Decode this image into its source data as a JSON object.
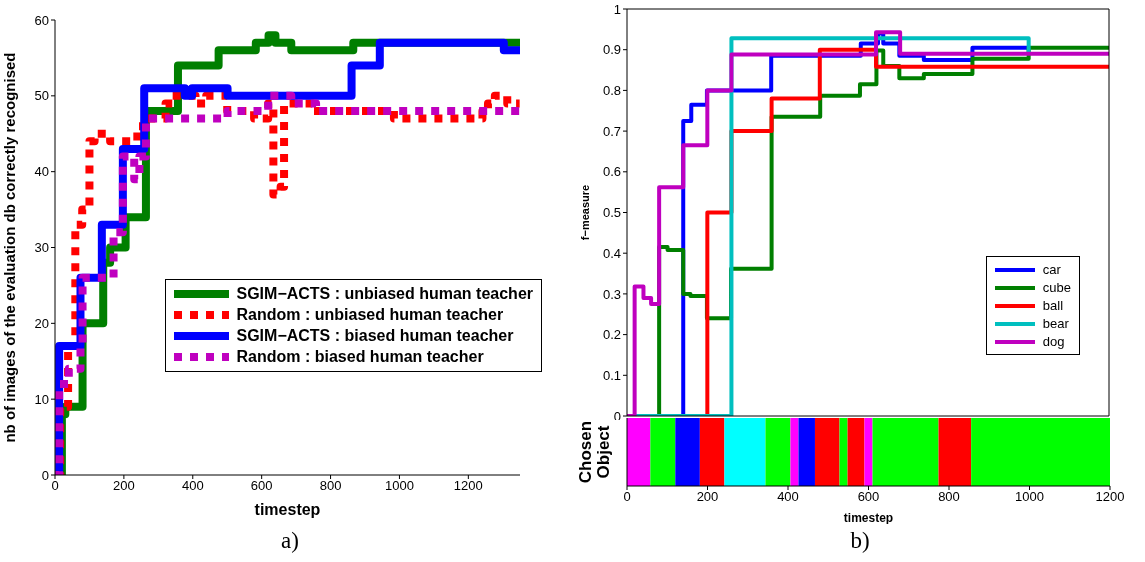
{
  "chart_data": [
    {
      "type": "step",
      "xlabel": "timestep",
      "ylabel": "nb of images of the evaluation db correctly recognised",
      "xlim": [
        0,
        1350
      ],
      "xticks": [
        0,
        200,
        400,
        600,
        800,
        1000,
        1200
      ],
      "ylim": [
        0,
        60
      ],
      "yticks": [
        0,
        10,
        20,
        30,
        40,
        50,
        60
      ],
      "grid": false,
      "legend": "bottom right",
      "marker": "none",
      "annotations": [
        "a)"
      ],
      "series": [
        {
          "name": "SGIM−ACTS : unbiased human teacher",
          "color": "#007f00",
          "line_style": "solid",
          "x": [
            0,
            20,
            30,
            80,
            140,
            160,
            205,
            264,
            357,
            475,
            583,
            620,
            640,
            686,
            866,
            1350
          ],
          "values": [
            0,
            8,
            9,
            20,
            28,
            30,
            34,
            48,
            54,
            56,
            57,
            58,
            57,
            56,
            57,
            57
          ]
        },
        {
          "name": "Random : unbiased human teacher",
          "color": "#ff0000",
          "line_style": "dotted",
          "x": [
            0,
            15,
            38,
            59,
            79,
            100,
            115,
            160,
            203,
            239,
            264,
            321,
            341,
            408,
            439,
            500,
            578,
            619,
            634,
            655,
            665,
            747,
            984,
            1241,
            1257,
            1277,
            1313,
            1349
          ],
          "values": [
            0,
            9,
            17,
            33,
            35,
            44,
            45,
            44,
            44,
            46,
            47,
            49,
            50,
            49,
            50,
            48,
            47,
            49,
            37,
            38,
            49,
            48,
            47,
            48,
            49,
            50,
            49,
            49
          ]
        },
        {
          "name": "SGIM−ACTS : biased human teacher",
          "color": "#0000ff",
          "line_style": "solid",
          "x": [
            0,
            12,
            74,
            136,
            197,
            259,
            377,
            398,
            501,
            861,
            943,
            1303,
            1350
          ],
          "values": [
            0,
            17,
            26,
            33,
            43,
            51,
            50,
            51,
            50,
            54,
            57,
            56,
            56
          ]
        },
        {
          "name": "Random : biased human teacher",
          "color": "#bf00bf",
          "line_style": "dotted",
          "x": [
            0,
            12,
            40,
            74,
            80,
            170,
            197,
            230,
            245,
            264,
            501,
            619,
            686,
            758,
            1350
          ],
          "values": [
            0,
            12,
            14,
            17,
            26,
            32,
            42,
            39,
            42,
            47,
            48,
            50,
            49,
            48,
            48
          ]
        }
      ]
    },
    {
      "type": "step",
      "ylabel": "f−measure",
      "xlim": [
        0,
        1200
      ],
      "xticks": [
        0,
        200,
        400,
        600,
        800,
        1000,
        1200
      ],
      "ylim": [
        0,
        1
      ],
      "yticks": [
        0,
        0.1,
        0.2,
        0.3,
        0.4,
        0.5,
        0.6,
        0.7,
        0.8,
        0.9,
        1
      ],
      "tick_labels": "y",
      "grid": false,
      "legend": "right",
      "marker": "none",
      "annotations": [
        "b)"
      ],
      "series": [
        {
          "name": "car",
          "color": "#0000ff",
          "line_style": "solid",
          "x": [
            0,
            140,
            160,
            199,
            359,
            582,
            625,
            638,
            678,
            739,
            860,
            1000
          ],
          "values": [
            0,
            0.725,
            0.765,
            0.8,
            0.885,
            0.915,
            0.94,
            0.915,
            0.885,
            0.875,
            0.905,
            0.905
          ]
        },
        {
          "name": "cube",
          "color": "#007f00",
          "line_style": "solid",
          "x": [
            0,
            80,
            101,
            140,
            158,
            199,
            259,
            360,
            481,
            580,
            621,
            638,
            678,
            739,
            860,
            1000,
            1200
          ],
          "values": [
            0,
            0.415,
            0.408,
            0.3,
            0.295,
            0.24,
            0.362,
            0.735,
            0.787,
            0.815,
            0.898,
            0.86,
            0.83,
            0.84,
            0.878,
            0.905,
            0.905
          ]
        },
        {
          "name": "ball",
          "color": "#ff0000",
          "line_style": "solid",
          "x": [
            0,
            200,
            260,
            360,
            480,
            620,
            1200
          ],
          "values": [
            0,
            0.5,
            0.7,
            0.78,
            0.9,
            0.858,
            0.858
          ]
        },
        {
          "name": "bear",
          "color": "#00bfbf",
          "line_style": "solid",
          "x": [
            0,
            260,
            1000
          ],
          "values": [
            0,
            0.928,
            0.89
          ]
        },
        {
          "name": "dog",
          "color": "#bf00bf",
          "line_style": "solid",
          "x": [
            0,
            19,
            41,
            60,
            80,
            140,
            200,
            260,
            620,
            680,
            1200
          ],
          "values": [
            0,
            0.318,
            0.29,
            0.275,
            0.562,
            0.665,
            0.8,
            0.888,
            0.943,
            0.89,
            0.89
          ]
        }
      ]
    },
    {
      "type": "bar",
      "orientation": "horizontal",
      "stacked": true,
      "xlabel": "timestep",
      "ylabel": "Chosen Object",
      "categories": [
        null
      ],
      "xlim": [
        0,
        1200
      ],
      "xticks": [
        0,
        200,
        400,
        600,
        800,
        1000,
        1200
      ],
      "grid": false,
      "series": [
        {
          "color": "#ff00ff",
          "values": [
            58
          ]
        },
        {
          "color": "#00ff00",
          "values": [
            62
          ]
        },
        {
          "color": "#0000ff",
          "values": [
            61
          ]
        },
        {
          "color": "#ff0000",
          "values": [
            61
          ]
        },
        {
          "color": "#00ffff",
          "values": [
            102
          ]
        },
        {
          "color": "#00ff00",
          "values": [
            62
          ]
        },
        {
          "color": "#ff00ff",
          "values": [
            20
          ]
        },
        {
          "color": "#0000ff",
          "values": [
            41
          ]
        },
        {
          "color": "#ff0000",
          "values": [
            61
          ]
        },
        {
          "color": "#00ff00",
          "values": [
            20
          ]
        },
        {
          "color": "#ff0000",
          "values": [
            42
          ]
        },
        {
          "color": "#ff00ff",
          "values": [
            20
          ]
        },
        {
          "color": "#00ff00",
          "values": [
            164
          ]
        },
        {
          "color": "#ff0000",
          "values": [
            81
          ]
        },
        {
          "color": "#00ff00",
          "values": [
            345
          ]
        }
      ]
    }
  ]
}
